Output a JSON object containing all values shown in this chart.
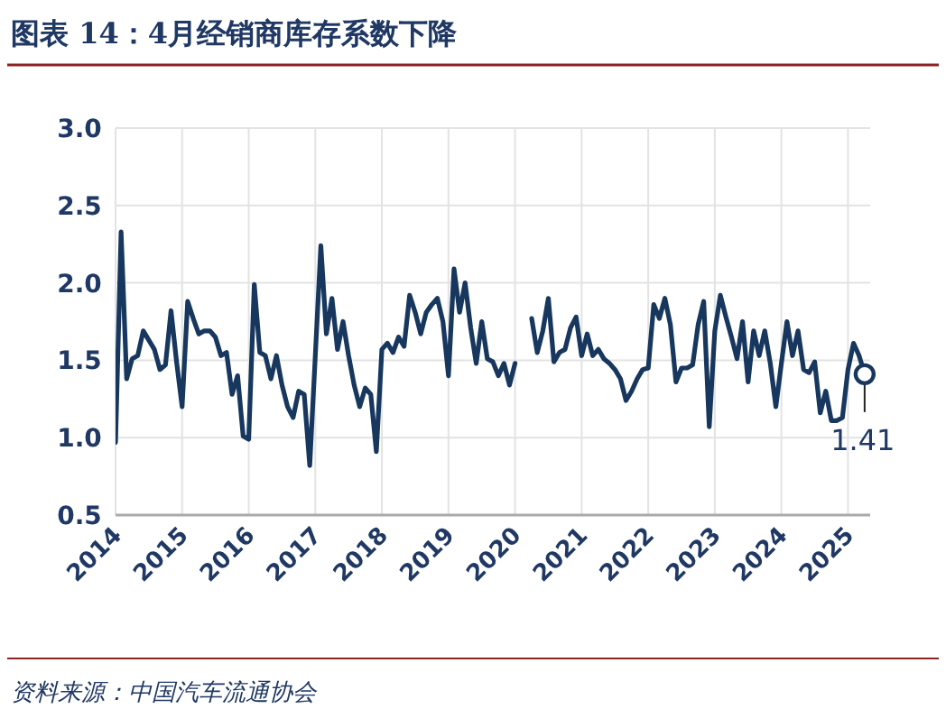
{
  "chart_data": {
    "type": "line",
    "title": "图表 14：4月经销商库存系数下降",
    "annotations": [
      "资料来源：中国汽车流通协会"
    ],
    "x": [
      "2014-01",
      "2014-02",
      "2014-03",
      "2014-04",
      "2014-05",
      "2014-06",
      "2014-07",
      "2014-08",
      "2014-09",
      "2014-10",
      "2014-11",
      "2014-12",
      "2015-01",
      "2015-02",
      "2015-03",
      "2015-04",
      "2015-05",
      "2015-06",
      "2015-07",
      "2015-08",
      "2015-09",
      "2015-10",
      "2015-11",
      "2015-12",
      "2016-01",
      "2016-02",
      "2016-03",
      "2016-04",
      "2016-05",
      "2016-06",
      "2016-07",
      "2016-08",
      "2016-09",
      "2016-10",
      "2016-11",
      "2016-12",
      "2017-01",
      "2017-02",
      "2017-03",
      "2017-04",
      "2017-05",
      "2017-06",
      "2017-07",
      "2017-08",
      "2017-09",
      "2017-10",
      "2017-11",
      "2017-12",
      "2018-01",
      "2018-02",
      "2018-03",
      "2018-04",
      "2018-05",
      "2018-06",
      "2018-07",
      "2018-08",
      "2018-09",
      "2018-10",
      "2018-11",
      "2018-12",
      "2019-01",
      "2019-02",
      "2019-03",
      "2019-04",
      "2019-05",
      "2019-06",
      "2019-07",
      "2019-08",
      "2019-09",
      "2019-10",
      "2019-11",
      "2019-12",
      "2020-01",
      "2020-02",
      "2020-03",
      "2020-04",
      "2020-05",
      "2020-06",
      "2020-07",
      "2020-08",
      "2020-09",
      "2020-10",
      "2020-11",
      "2020-12",
      "2021-01",
      "2021-02",
      "2021-03",
      "2021-04",
      "2021-05",
      "2021-06",
      "2021-07",
      "2021-08",
      "2021-09",
      "2021-10",
      "2021-11",
      "2021-12",
      "2022-01",
      "2022-02",
      "2022-03",
      "2022-04",
      "2022-05",
      "2022-06",
      "2022-07",
      "2022-08",
      "2022-09",
      "2022-10",
      "2022-11",
      "2022-12",
      "2023-01",
      "2023-02",
      "2023-03",
      "2023-04",
      "2023-05",
      "2023-06",
      "2023-07",
      "2023-08",
      "2023-09",
      "2023-10",
      "2023-11",
      "2023-12",
      "2024-01",
      "2024-02",
      "2024-03",
      "2024-04",
      "2024-05",
      "2024-06",
      "2024-07",
      "2024-08",
      "2024-09",
      "2024-10",
      "2024-11",
      "2024-12",
      "2025-01",
      "2025-02",
      "2025-03",
      "2025-04"
    ],
    "series": [
      {
        "color": "#17375e",
        "values": [
          0.97,
          2.33,
          1.38,
          1.51,
          1.53,
          1.69,
          1.63,
          1.57,
          1.44,
          1.47,
          1.82,
          1.49,
          1.2,
          1.88,
          1.77,
          1.67,
          1.69,
          1.69,
          1.65,
          1.53,
          1.55,
          1.28,
          1.4,
          1.01,
          0.99,
          1.99,
          1.55,
          1.53,
          1.38,
          1.53,
          1.34,
          1.2,
          1.13,
          1.3,
          1.28,
          0.82,
          1.53,
          2.24,
          1.67,
          1.9,
          1.57,
          1.75,
          1.53,
          1.34,
          1.2,
          1.32,
          1.28,
          0.91,
          1.57,
          1.61,
          1.55,
          1.65,
          1.59,
          1.92,
          1.81,
          1.67,
          1.81,
          1.86,
          1.9,
          1.75,
          1.4,
          2.09,
          1.81,
          2.0,
          1.71,
          1.48,
          1.75,
          1.51,
          1.49,
          1.4,
          1.48,
          1.34,
          1.48,
          null,
          null,
          1.77,
          1.55,
          1.69,
          1.9,
          1.49,
          1.55,
          1.57,
          1.71,
          1.78,
          1.53,
          1.67,
          1.53,
          1.57,
          1.51,
          1.48,
          1.44,
          1.38,
          1.24,
          1.3,
          1.38,
          1.44,
          1.45,
          1.86,
          1.77,
          1.9,
          1.73,
          1.36,
          1.45,
          1.45,
          1.47,
          1.73,
          1.88,
          1.07,
          1.69,
          1.92,
          1.78,
          1.65,
          1.51,
          1.75,
          1.36,
          1.69,
          1.53,
          1.69,
          1.48,
          1.2,
          1.48,
          1.75,
          1.53,
          1.69,
          1.44,
          1.42,
          1.49,
          1.16,
          1.3,
          1.11,
          1.11,
          1.13,
          1.44,
          1.61,
          1.53,
          1.41
        ],
        "value_labels": [
          null,
          null,
          null,
          null,
          null,
          null,
          null,
          null,
          null,
          null,
          null,
          null,
          null,
          null,
          null,
          null,
          null,
          null,
          null,
          null,
          null,
          null,
          null,
          null,
          null,
          null,
          null,
          null,
          null,
          null,
          null,
          null,
          null,
          null,
          null,
          null,
          null,
          null,
          null,
          null,
          null,
          null,
          null,
          null,
          null,
          null,
          null,
          null,
          null,
          null,
          null,
          null,
          null,
          null,
          null,
          null,
          null,
          null,
          null,
          null,
          null,
          null,
          null,
          null,
          null,
          null,
          null,
          null,
          null,
          null,
          null,
          null,
          null,
          null,
          null,
          null,
          null,
          null,
          null,
          null,
          null,
          null,
          null,
          null,
          null,
          null,
          null,
          null,
          null,
          null,
          null,
          null,
          null,
          null,
          null,
          null,
          null,
          null,
          null,
          null,
          null,
          null,
          null,
          null,
          null,
          null,
          null,
          null,
          null,
          null,
          null,
          null,
          null,
          null,
          null,
          null,
          null,
          null,
          null,
          null,
          null,
          null,
          null,
          null,
          null,
          null,
          null,
          null,
          null,
          null,
          null,
          null,
          null,
          null,
          null,
          "1.41"
        ]
      }
    ],
    "xlim": [
      "2014-01",
      "2025-05"
    ],
    "xticks": [
      "2014",
      "2015",
      "2016",
      "2017",
      "2018",
      "2019",
      "2020",
      "2021",
      "2022",
      "2023",
      "2024",
      "2025"
    ],
    "ylim": [
      0.5,
      3.0
    ],
    "yticks": [
      {
        "value": 0.5,
        "label": "0.5"
      },
      {
        "value": 1.0,
        "label": "1.0"
      },
      {
        "value": 1.5,
        "label": "1.5"
      },
      {
        "value": 2.0,
        "label": "2.0"
      },
      {
        "value": 2.5,
        "label": "2.5"
      },
      {
        "value": 3.0,
        "label": "3.0"
      }
    ],
    "grid": true,
    "marker": "none",
    "line_style": "solid"
  }
}
